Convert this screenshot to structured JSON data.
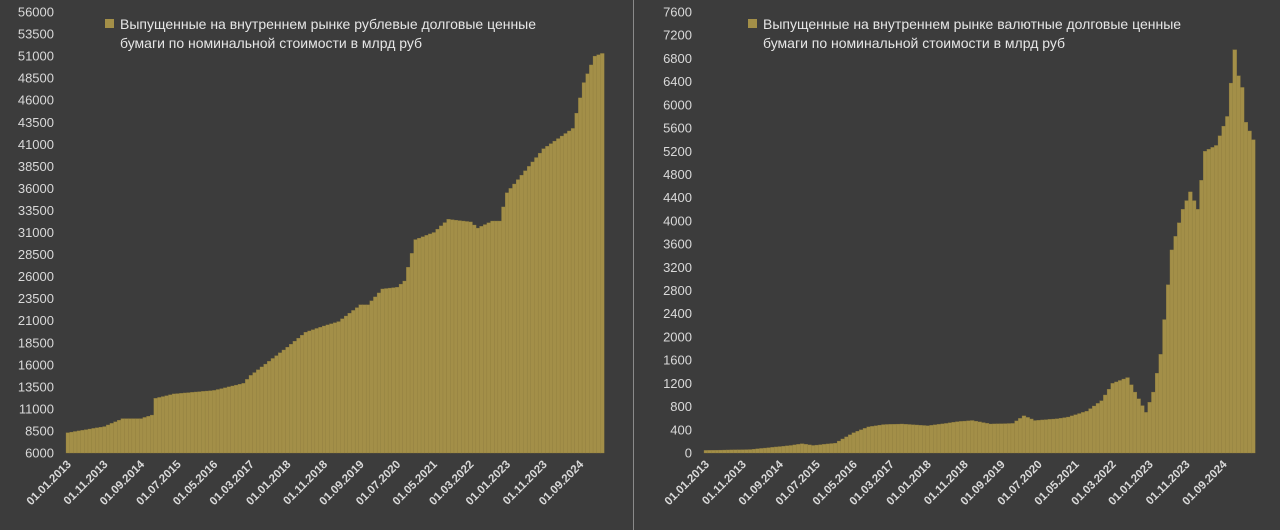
{
  "colors": {
    "background": "#3c3c3c",
    "bar": "#a38f48",
    "bar_edge": "#8c7a3c",
    "text": "#d9d9d9"
  },
  "chart_data": [
    {
      "type": "bar",
      "legend": {
        "line1": "Выпущенные на внутреннем рынке рублевые долговые ценные",
        "line2": "бумаги по номинальной стоимости в млрд руб",
        "placement": "top-left"
      },
      "ylim": [
        6000,
        56000
      ],
      "y_ticks": [
        "56000",
        "53500",
        "51000",
        "48500",
        "46000",
        "43500",
        "41000",
        "38500",
        "36000",
        "33500",
        "31000",
        "28500",
        "26000",
        "23500",
        "21000",
        "18500",
        "16000",
        "13500",
        "11000",
        "8500",
        "6000"
      ],
      "x_ticks": [
        "01.01.2013",
        "01.11.2013",
        "01.09.2014",
        "01.07.2015",
        "01.05.2016",
        "01.03.2017",
        "01.01.2018",
        "01.11.2018",
        "01.09.2019",
        "01.07.2020",
        "01.05.2021",
        "01.03.2022",
        "01.01.2023",
        "01.11.2023",
        "01.09.2024"
      ],
      "start": "2013-01",
      "keypoints": [
        [
          "2013-01",
          8300
        ],
        [
          "2013-11",
          9000
        ],
        [
          "2014-04",
          9900
        ],
        [
          "2014-09",
          9900
        ],
        [
          "2014-12",
          10300
        ],
        [
          "2015-01",
          12200
        ],
        [
          "2015-06",
          12700
        ],
        [
          "2016-05",
          13100
        ],
        [
          "2017-01",
          13900
        ],
        [
          "2017-03",
          14800
        ],
        [
          "2018-01",
          18000
        ],
        [
          "2018-06",
          19700
        ],
        [
          "2018-11",
          20400
        ],
        [
          "2019-03",
          20900
        ],
        [
          "2019-09",
          22800
        ],
        [
          "2019-11",
          22800
        ],
        [
          "2020-03",
          24600
        ],
        [
          "2020-07",
          24800
        ],
        [
          "2020-09",
          25500
        ],
        [
          "2020-12",
          30200
        ],
        [
          "2021-05",
          31000
        ],
        [
          "2021-09",
          32500
        ],
        [
          "2022-03",
          32200
        ],
        [
          "2022-05",
          31500
        ],
        [
          "2022-09",
          32300
        ],
        [
          "2022-11",
          32300
        ],
        [
          "2023-01",
          35500
        ],
        [
          "2023-05",
          37500
        ],
        [
          "2023-11",
          40500
        ],
        [
          "2024-07",
          42800
        ],
        [
          "2024-10",
          48000
        ],
        [
          "2025-01",
          51000
        ],
        [
          "2025-03",
          51300
        ]
      ]
    },
    {
      "type": "bar",
      "legend": {
        "line1": "Выпущенные на внутреннем рынке валютные долговые ценные",
        "line2": "бумаги по номинальной стоимости в млрд руб",
        "placement": "top-left"
      },
      "ylim": [
        0,
        7600
      ],
      "y_ticks": [
        "7600",
        "7200",
        "6800",
        "6400",
        "6000",
        "5600",
        "5200",
        "4800",
        "4400",
        "4000",
        "3600",
        "3200",
        "2800",
        "2400",
        "2000",
        "1600",
        "1200",
        "800",
        "400",
        "0"
      ],
      "x_ticks": [
        "01.01.2013",
        "01.11.2013",
        "01.09.2014",
        "01.07.2015",
        "01.05.2016",
        "01.03.2017",
        "01.01.2018",
        "01.11.2018",
        "01.09.2019",
        "01.07.2020",
        "01.05.2021",
        "01.03.2022",
        "01.01.2023",
        "01.11.2023",
        "01.09.2024"
      ],
      "start": "2013-01",
      "keypoints": [
        [
          "2013-01",
          45
        ],
        [
          "2014-01",
          60
        ],
        [
          "2014-12",
          130
        ],
        [
          "2015-03",
          160
        ],
        [
          "2015-06",
          130
        ],
        [
          "2015-12",
          170
        ],
        [
          "2016-05",
          350
        ],
        [
          "2016-09",
          450
        ],
        [
          "2017-01",
          490
        ],
        [
          "2017-06",
          500
        ],
        [
          "2018-01",
          470
        ],
        [
          "2018-06",
          510
        ],
        [
          "2018-09",
          540
        ],
        [
          "2019-01",
          560
        ],
        [
          "2019-06",
          500
        ],
        [
          "2019-12",
          510
        ],
        [
          "2020-03",
          640
        ],
        [
          "2020-06",
          560
        ],
        [
          "2020-12",
          590
        ],
        [
          "2021-03",
          620
        ],
        [
          "2021-08",
          720
        ],
        [
          "2021-12",
          900
        ],
        [
          "2022-03",
          1200
        ],
        [
          "2022-07",
          1300
        ],
        [
          "2022-09",
          1050
        ],
        [
          "2022-12",
          700
        ],
        [
          "2023-02",
          1050
        ],
        [
          "2023-04",
          1700
        ],
        [
          "2023-07",
          3500
        ],
        [
          "2023-10",
          4200
        ],
        [
          "2023-12",
          4500
        ],
        [
          "2024-02",
          4200
        ],
        [
          "2024-04",
          5200
        ],
        [
          "2024-07",
          5300
        ],
        [
          "2024-10",
          5800
        ],
        [
          "2024-12",
          6950
        ],
        [
          "2025-01",
          6500
        ],
        [
          "2025-02",
          6300
        ],
        [
          "2025-03",
          5700
        ],
        [
          "2025-05",
          5400
        ]
      ]
    }
  ]
}
